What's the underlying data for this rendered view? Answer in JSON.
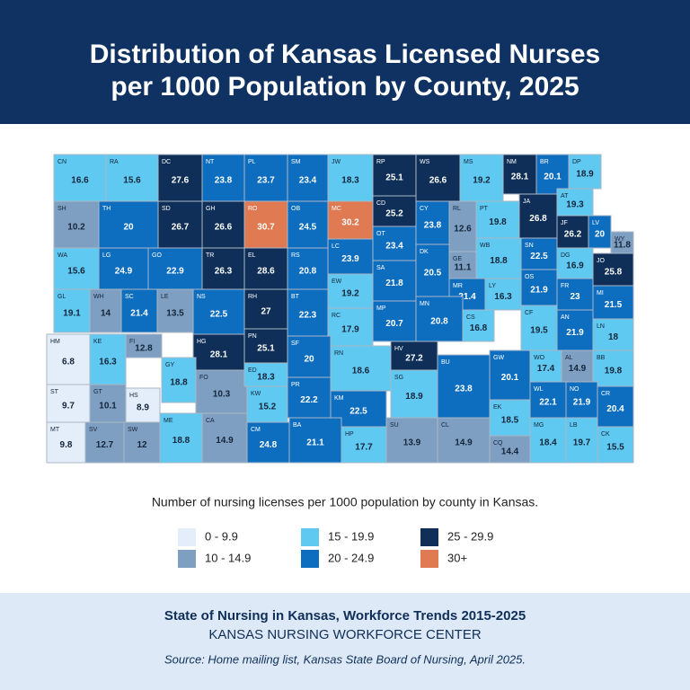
{
  "header": {
    "title_lines": [
      "Distribution of Kansas Licensed Nurses",
      "per 1000 Population by County, 2025"
    ]
  },
  "map": {
    "counties": [
      {
        "abbr": "CN",
        "value": 16.6
      },
      {
        "abbr": "RA",
        "value": 15.6
      },
      {
        "abbr": "DC",
        "value": 27.6
      },
      {
        "abbr": "NT",
        "value": 23.8
      },
      {
        "abbr": "PL",
        "value": 23.7
      },
      {
        "abbr": "SM",
        "value": 23.4
      },
      {
        "abbr": "JW",
        "value": 18.3
      },
      {
        "abbr": "RP",
        "value": 25.1
      },
      {
        "abbr": "WS",
        "value": 26.6
      },
      {
        "abbr": "MS",
        "value": 19.2
      },
      {
        "abbr": "NM",
        "value": 28.1
      },
      {
        "abbr": "BR",
        "value": 20.1
      },
      {
        "abbr": "DP",
        "value": 18.9
      },
      {
        "abbr": "SH",
        "value": 10.2
      },
      {
        "abbr": "TH",
        "value": 20
      },
      {
        "abbr": "SD",
        "value": 26.7
      },
      {
        "abbr": "GH",
        "value": 26.6
      },
      {
        "abbr": "RO",
        "value": 30.7
      },
      {
        "abbr": "OB",
        "value": 24.5
      },
      {
        "abbr": "MC",
        "value": 30.2
      },
      {
        "abbr": "CD",
        "value": 25.2
      },
      {
        "abbr": "CY",
        "value": 23.8
      },
      {
        "abbr": "RL",
        "value": 12.6
      },
      {
        "abbr": "PT",
        "value": 19.8
      },
      {
        "abbr": "JA",
        "value": 26.8
      },
      {
        "abbr": "AT",
        "value": 19.3
      },
      {
        "abbr": "JF",
        "value": 26.2
      },
      {
        "abbr": "LV",
        "value": 20
      },
      {
        "abbr": "WY",
        "value": 11.8
      },
      {
        "abbr": "WA",
        "value": 15.6
      },
      {
        "abbr": "LG",
        "value": 24.9
      },
      {
        "abbr": "GO",
        "value": 22.9
      },
      {
        "abbr": "TR",
        "value": 26.3
      },
      {
        "abbr": "EL",
        "value": 28.6
      },
      {
        "abbr": "RS",
        "value": 20.8
      },
      {
        "abbr": "LC",
        "value": 23.9
      },
      {
        "abbr": "OT",
        "value": 23.4
      },
      {
        "abbr": "DK",
        "value": 20.5
      },
      {
        "abbr": "GE",
        "value": 11.1
      },
      {
        "abbr": "WB",
        "value": 18.8
      },
      {
        "abbr": "SN",
        "value": 22.5
      },
      {
        "abbr": "DG",
        "value": 16.9
      },
      {
        "abbr": "JO",
        "value": 25.8
      },
      {
        "abbr": "SA",
        "value": 21.8
      },
      {
        "abbr": "GL",
        "value": 19.1
      },
      {
        "abbr": "WH",
        "value": 14
      },
      {
        "abbr": "SC",
        "value": 21.4
      },
      {
        "abbr": "LE",
        "value": 13.5
      },
      {
        "abbr": "NS",
        "value": 22.5
      },
      {
        "abbr": "RH",
        "value": 27
      },
      {
        "abbr": "BT",
        "value": 22.3
      },
      {
        "abbr": "EW",
        "value": 19.2
      },
      {
        "abbr": "MR",
        "value": 21.4
      },
      {
        "abbr": "LY",
        "value": 16.3
      },
      {
        "abbr": "OS",
        "value": 21.9
      },
      {
        "abbr": "FR",
        "value": 23
      },
      {
        "abbr": "MI",
        "value": 21.5
      },
      {
        "abbr": "RC",
        "value": 17.9
      },
      {
        "abbr": "MP",
        "value": 20.7
      },
      {
        "abbr": "MN",
        "value": 20.8
      },
      {
        "abbr": "CS",
        "value": 16.8
      },
      {
        "abbr": "CF",
        "value": 19.5
      },
      {
        "abbr": "AN",
        "value": 21.9
      },
      {
        "abbr": "LN",
        "value": 18
      },
      {
        "abbr": "HM",
        "value": 6.8
      },
      {
        "abbr": "KE",
        "value": 16.3
      },
      {
        "abbr": "FI",
        "value": 12.8
      },
      {
        "abbr": "HG",
        "value": 28.1
      },
      {
        "abbr": "PN",
        "value": 25.1
      },
      {
        "abbr": "SF",
        "value": 20
      },
      {
        "abbr": "RN",
        "value": 18.6
      },
      {
        "abbr": "HV",
        "value": 27.2
      },
      {
        "abbr": "BU",
        "value": 23.8
      },
      {
        "abbr": "GW",
        "value": 20.1
      },
      {
        "abbr": "WO",
        "value": 17.4
      },
      {
        "abbr": "AL",
        "value": 14.9
      },
      {
        "abbr": "BB",
        "value": 19.8
      },
      {
        "abbr": "GY",
        "value": 18.8
      },
      {
        "abbr": "FO",
        "value": 10.3
      },
      {
        "abbr": "ED",
        "value": 18.3
      },
      {
        "abbr": "SG",
        "value": 18.9
      },
      {
        "abbr": "ST",
        "value": 9.7
      },
      {
        "abbr": "GT",
        "value": 10.1
      },
      {
        "abbr": "HS",
        "value": 8.9
      },
      {
        "abbr": "KW",
        "value": 15.2
      },
      {
        "abbr": "PR",
        "value": 22.2
      },
      {
        "abbr": "KM",
        "value": 22.5
      },
      {
        "abbr": "WL",
        "value": 22.1
      },
      {
        "abbr": "NO",
        "value": 21.9
      },
      {
        "abbr": "CR",
        "value": 20.4
      },
      {
        "abbr": "EK",
        "value": 18.5
      },
      {
        "abbr": "MT",
        "value": 9.8
      },
      {
        "abbr": "SV",
        "value": 12.7
      },
      {
        "abbr": "SW",
        "value": 12
      },
      {
        "abbr": "ME",
        "value": 18.8
      },
      {
        "abbr": "CA",
        "value": 14.9
      },
      {
        "abbr": "CM",
        "value": 24.8
      },
      {
        "abbr": "BA",
        "value": 21.1
      },
      {
        "abbr": "HP",
        "value": 17.7
      },
      {
        "abbr": "SU",
        "value": 13.9
      },
      {
        "abbr": "CL",
        "value": 14.9
      },
      {
        "abbr": "CQ",
        "value": 14.4
      },
      {
        "abbr": "MG",
        "value": 18.4
      },
      {
        "abbr": "LB",
        "value": 19.7
      },
      {
        "abbr": "CK",
        "value": 15.5
      }
    ],
    "legend_caption": "Number of nursing licenses per 1000 population by county in Kansas.",
    "legend": [
      {
        "label": "0 - 9.9",
        "from": 0,
        "color": "#e4eefa"
      },
      {
        "label": "10 - 14.9",
        "from": 10,
        "color": "#7f9fc2"
      },
      {
        "label": "15 - 19.9",
        "from": 15,
        "color": "#5fc9f1"
      },
      {
        "label": "20 - 24.9",
        "from": 20,
        "color": "#0d6ec0"
      },
      {
        "label": "25 - 29.9",
        "from": 25,
        "color": "#0f2f58"
      },
      {
        "label": "30+",
        "from": 30,
        "color": "#e07a52"
      }
    ]
  },
  "footer": {
    "title": "State of Nursing in Kansas, Workforce Trends 2015-2025",
    "org": "KANSAS NURSING WORKFORCE CENTER",
    "source": "Source: Home mailing list, Kansas State Board of Nursing, April 2025."
  }
}
